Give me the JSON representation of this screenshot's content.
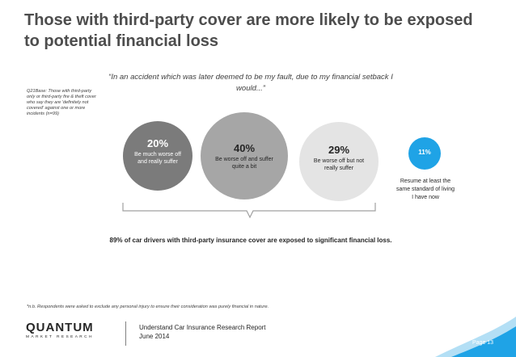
{
  "title": "Those with third-party cover are more likely to be exposed to potential financial loss",
  "quote": "“In an accident which was later deemed to be my fault, due to my financial setback I would...”",
  "base_note": "Q21Base: Those with third-party only or third-party fire & theft cover who say they are 'definitely not covered' against one or more incidents (n=99)",
  "colors": {
    "much_worse": "#7b7b7b",
    "worse": "#a6a6a6",
    "worse_not_suffer": "#e4e4e4",
    "resume": "#1fa3e6"
  },
  "chart_data": {
    "type": "bubble",
    "categories": [
      "Be much worse off and really suffer",
      "Be worse off and suffer quite a bit",
      "Be worse off but not really suffer",
      "Resume at least the same standard of living I have now"
    ],
    "values": [
      20,
      40,
      29,
      11
    ],
    "value_labels": [
      "20%",
      "40%",
      "29%",
      "11%"
    ]
  },
  "summary": "89% of car drivers with third-party insurance cover are exposed to significant financial loss.",
  "footnote": "*n.b. Respondents were asked to exclude any personal injury to ensure their consideration was purely financial in nature.",
  "logo": {
    "name": "QUANTUM",
    "sub": "MARKET RESEARCH"
  },
  "report": {
    "title": "Understand Car Insurance Research Report",
    "date": "June 2014"
  },
  "page_label": "Page 13"
}
